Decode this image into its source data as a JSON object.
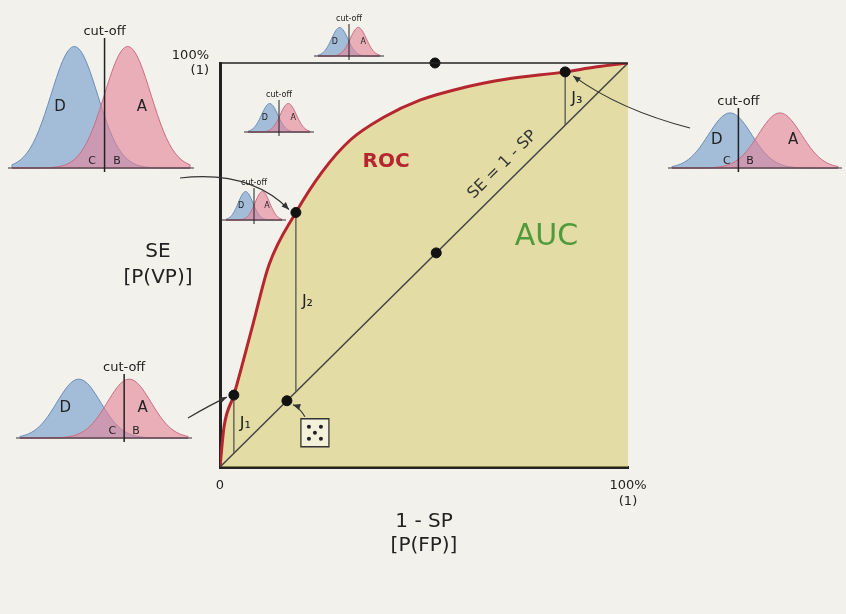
{
  "chart_data": {
    "type": "line",
    "x_label": [
      "1 - SP",
      "[P(FP)]"
    ],
    "y_label": [
      "SE",
      "[P(VP)]"
    ],
    "xlim": [
      0,
      100
    ],
    "ylim": [
      0,
      100
    ],
    "xticks": [
      0,
      {
        "value": 100,
        "label": "100%\n(1)"
      }
    ],
    "yticks": [
      {
        "value": 100,
        "label": "100%\n(1)"
      }
    ],
    "grid": false,
    "series": [
      {
        "name": "ROC",
        "type": "area",
        "color": "#b5262e",
        "x": [
          0,
          1,
          3.4,
          8,
          12,
          18.6,
          25,
          32,
          40,
          49,
          60,
          70,
          84.6,
          92,
          100
        ],
        "values": [
          0,
          10,
          17.8,
          35,
          50,
          63,
          73,
          81,
          86.5,
          90.8,
          94,
          96,
          97.8,
          99,
          100
        ]
      },
      {
        "name": "SE = 1 - SP",
        "type": "line",
        "color": "#444444",
        "x": [
          0,
          100
        ],
        "values": [
          0,
          100
        ]
      }
    ],
    "points": {
      "marker": "circle",
      "color": "#111111",
      "x": [
        3.4,
        18.6,
        84.6,
        16.4,
        53,
        52.7
      ],
      "values": [
        17.8,
        63,
        97.8,
        16.4,
        53,
        100
      ]
    },
    "youden": [
      {
        "label": "J₁",
        "x": 3.4,
        "from": 3.4,
        "to": 17.8
      },
      {
        "label": "J₂",
        "x": 18.6,
        "from": 18.6,
        "to": 63
      },
      {
        "label": "J₃",
        "x": 84.6,
        "from": 84.6,
        "to": 97.8
      }
    ],
    "annotations": [
      {
        "text": "AUC",
        "x": 80,
        "y": 57,
        "color": "#4f9a3c"
      }
    ],
    "insets": [
      {
        "title": "cut-off",
        "labels": [
          "D",
          "A",
          "C",
          "B"
        ]
      },
      {
        "title": "cut-off",
        "labels": [
          "D",
          "A",
          "C",
          "B"
        ]
      },
      {
        "title": "cut-off",
        "labels": [
          "D",
          "A",
          "C",
          "B"
        ]
      },
      {
        "title": "cut-off",
        "labels": [
          "D",
          "A"
        ]
      },
      {
        "title": "cut-off",
        "labels": [
          "D",
          "A"
        ]
      },
      {
        "title": "cut-off",
        "labels": [
          "D",
          "A"
        ]
      }
    ]
  }
}
